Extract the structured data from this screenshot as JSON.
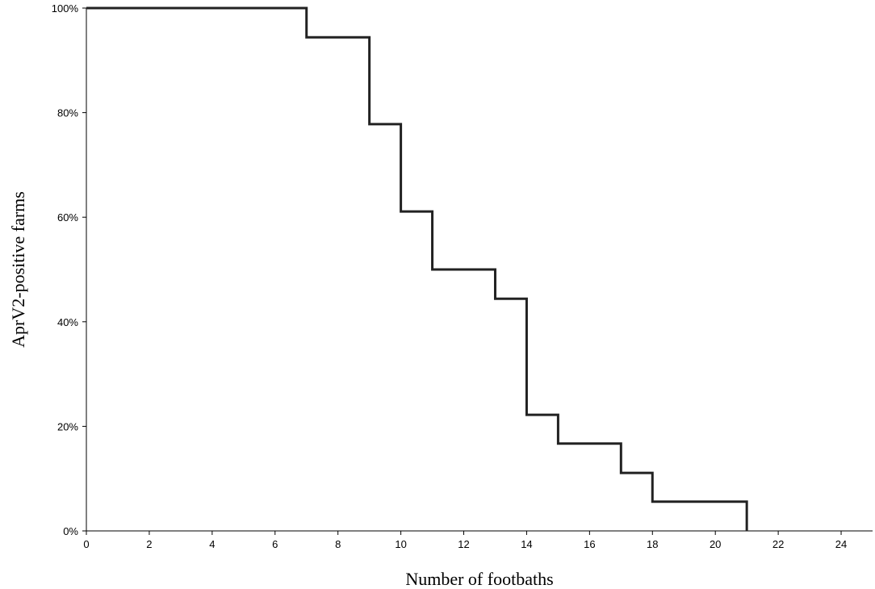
{
  "chart_data": {
    "type": "line",
    "step": true,
    "xlabel": "Number of footbaths",
    "ylabel": "AprV2-positive farms",
    "xlim": [
      0,
      25
    ],
    "ylim": [
      0,
      100
    ],
    "x_ticks": [
      0,
      2,
      4,
      6,
      8,
      10,
      12,
      14,
      16,
      18,
      20,
      22,
      24
    ],
    "x_tick_labels": [
      "0",
      "2",
      "4",
      "6",
      "8",
      "10",
      "12",
      "14",
      "16",
      "18",
      "20",
      "22",
      "24"
    ],
    "y_ticks": [
      0,
      20,
      40,
      60,
      80,
      100
    ],
    "y_tick_labels": [
      "0%",
      "20%",
      "40%",
      "60%",
      "80%",
      "100%"
    ],
    "grid": false,
    "line_color": "#222222",
    "series": [
      {
        "x": [
          0,
          7,
          9,
          10,
          11,
          13,
          14,
          15,
          17,
          18,
          21
        ],
        "y": [
          100,
          94.4,
          77.8,
          61.1,
          50.0,
          44.4,
          22.2,
          16.7,
          11.1,
          5.6,
          0
        ]
      }
    ]
  }
}
